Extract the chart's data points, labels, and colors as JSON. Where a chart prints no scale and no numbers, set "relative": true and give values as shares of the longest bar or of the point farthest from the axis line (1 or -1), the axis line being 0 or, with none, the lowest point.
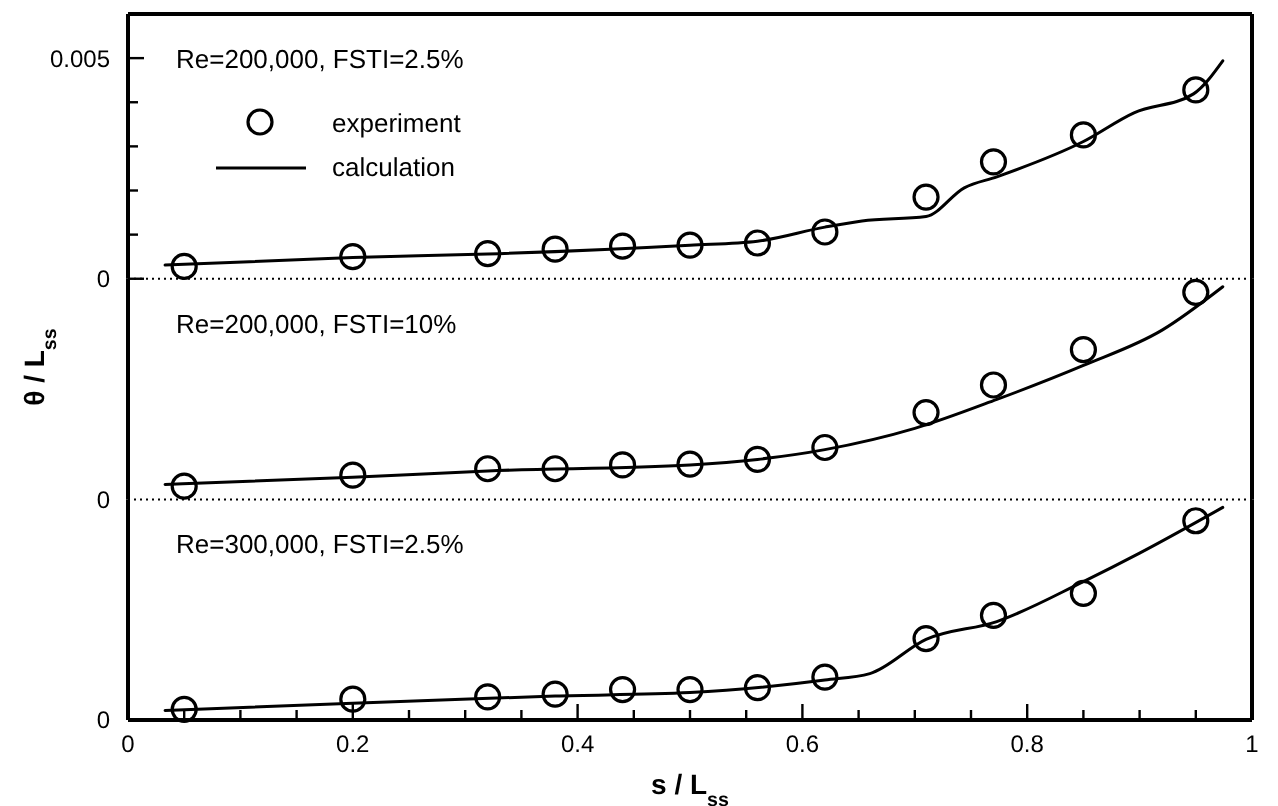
{
  "chart_data": [
    {
      "type": "line",
      "annotations": [
        "Re=200,000, FSTI=2.5%"
      ],
      "xlim": [
        0,
        1
      ],
      "ylim": [
        0,
        0.006
      ],
      "yticks": [
        0,
        {
          "value": 0.001,
          "label": null
        },
        {
          "value": 0.002,
          "label": null
        },
        {
          "value": 0.003,
          "label": null
        },
        {
          "value": 0.004,
          "label": null
        },
        0.005
      ],
      "tick_labels": "y",
      "legend": "top left",
      "series": [
        {
          "name": "experiment",
          "type": "scatter",
          "marker": "circle",
          "color": "#000000",
          "x": [
            0.05,
            0.2,
            0.32,
            0.38,
            0.44,
            0.5,
            0.56,
            0.62,
            0.71,
            0.77,
            0.85,
            0.95
          ],
          "values": [
            0.00028,
            0.0005,
            0.00057,
            0.00067,
            0.00074,
            0.00076,
            0.00081,
            0.00106,
            0.00185,
            0.00265,
            0.00326,
            0.00428
          ]
        },
        {
          "name": "calculation",
          "marker": "none",
          "line_style": "solid",
          "color": "#000000",
          "x": [
            0.033,
            0.2,
            0.32,
            0.5,
            0.56,
            0.62,
            0.653,
            0.71,
            0.744,
            0.773,
            0.85,
            0.895,
            0.948,
            0.974
          ],
          "values": [
            0.00031,
            0.00048,
            0.00056,
            0.00076,
            0.00085,
            0.00117,
            0.00131,
            0.00141,
            0.00206,
            0.00231,
            0.00311,
            0.00376,
            0.00419,
            0.00494
          ]
        }
      ]
    },
    {
      "type": "line",
      "relative": true,
      "annotations": [
        "Re=200,000, FSTI=10%",
        "0"
      ],
      "ylabel": "θ / L$_{ss}$",
      "xlim": [
        0,
        1
      ],
      "tick_labels": false,
      "series": [
        {
          "type": "scatter",
          "marker": "circle",
          "color": "#000000",
          "x": [
            0.05,
            0.2,
            0.32,
            0.38,
            0.44,
            0.5,
            0.56,
            0.62,
            0.71,
            0.77,
            0.85,
            0.95
          ],
          "values": [
            0.062,
            0.114,
            0.144,
            0.144,
            0.162,
            0.166,
            0.188,
            0.244,
            0.408,
            0.538,
            0.704,
            0.974
          ]
        },
        {
          "marker": "none",
          "line_style": "solid",
          "color": "#000000",
          "x": [
            0.033,
            0.2,
            0.32,
            0.5,
            0.56,
            0.62,
            0.7,
            0.773,
            0.85,
            0.92,
            0.974
          ],
          "values": [
            0.07,
            0.104,
            0.134,
            0.162,
            0.188,
            0.234,
            0.334,
            0.47,
            0.63,
            0.796,
            1
          ]
        }
      ]
    },
    {
      "type": "line",
      "relative": true,
      "annotations": [
        "Re=300,000, FSTI=2.5%",
        "0"
      ],
      "xlabel": "s / L$_{ss}$",
      "xlim": [
        0,
        1
      ],
      "xticks": [
        0,
        {
          "value": 0.05,
          "label": null
        },
        {
          "value": 0.1,
          "label": null
        },
        {
          "value": 0.15,
          "label": null
        },
        0.2,
        {
          "value": 0.25,
          "label": null
        },
        {
          "value": 0.3,
          "label": null
        },
        {
          "value": 0.35,
          "label": null
        },
        0.4,
        {
          "value": 0.45,
          "label": null
        },
        {
          "value": 0.5,
          "label": null
        },
        {
          "value": 0.55,
          "label": null
        },
        0.6,
        {
          "value": 0.65,
          "label": null
        },
        {
          "value": 0.7,
          "label": null
        },
        {
          "value": 0.75,
          "label": null
        },
        0.8,
        {
          "value": 0.85,
          "label": null
        },
        {
          "value": 0.9,
          "label": null
        },
        {
          "value": 0.95,
          "label": null
        },
        1
      ],
      "tick_labels": "x",
      "series": [
        {
          "type": "scatter",
          "marker": "circle",
          "color": "#000000",
          "x": [
            0.05,
            0.2,
            0.32,
            0.38,
            0.44,
            0.5,
            0.56,
            0.62,
            0.71,
            0.77,
            0.85,
            0.95
          ],
          "values": [
            0.05,
            0.098,
            0.109,
            0.122,
            0.143,
            0.143,
            0.152,
            0.202,
            0.383,
            0.492,
            0.596,
            0.937
          ]
        },
        {
          "marker": "none",
          "line_style": "solid",
          "color": "#000000",
          "x": [
            0.033,
            0.2,
            0.38,
            0.5,
            0.62,
            0.66,
            0.71,
            0.773,
            0.85,
            0.9,
            0.974
          ],
          "values": [
            0.045,
            0.079,
            0.113,
            0.129,
            0.188,
            0.218,
            0.379,
            0.463,
            0.651,
            0.785,
            1
          ]
        }
      ]
    }
  ]
}
